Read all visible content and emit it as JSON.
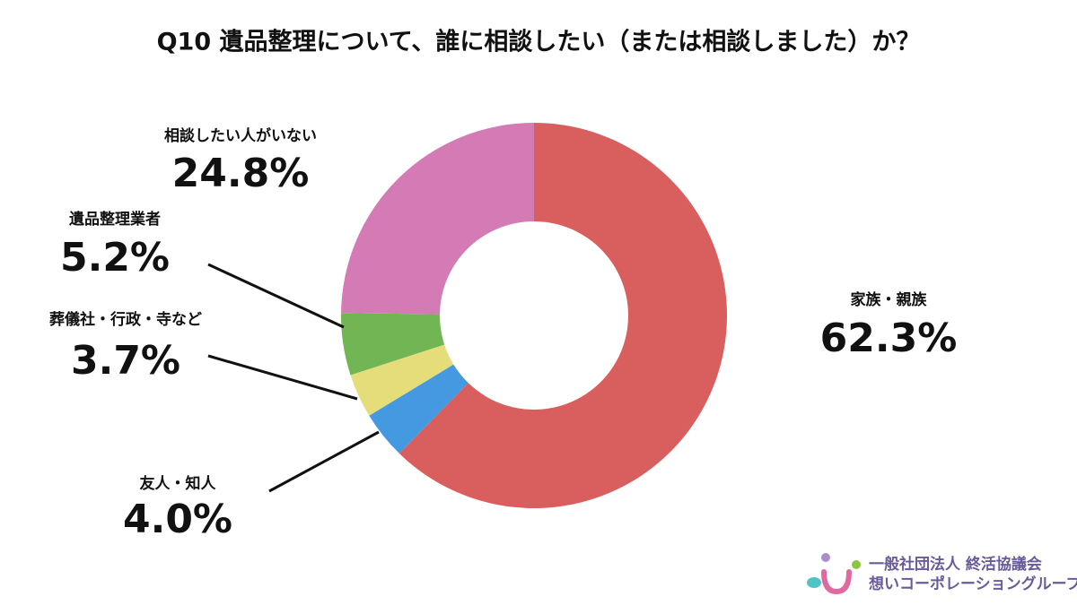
{
  "chart_data": {
    "type": "donut",
    "title": "Q10 遺品整理について、誰に相談したい（または相談しました）か？",
    "categories": [
      "家族・親族",
      "友人・知人",
      "葬儀社・行政・寺など",
      "遺品整理業者",
      "相談したい人がいない"
    ],
    "values": [
      62.3,
      4.0,
      3.7,
      5.2,
      24.8
    ],
    "value_labels": [
      "62.3%",
      "4.0%",
      "3.7%",
      "5.2%",
      "24.8%"
    ],
    "colors": [
      "#d95f5e",
      "#4499e0",
      "#e5dc7a",
      "#72b554",
      "#d47ab4"
    ]
  },
  "logo": {
    "line1": "一般社団法人 終活協議会",
    "line2": "想いコーポレーショングループ"
  }
}
